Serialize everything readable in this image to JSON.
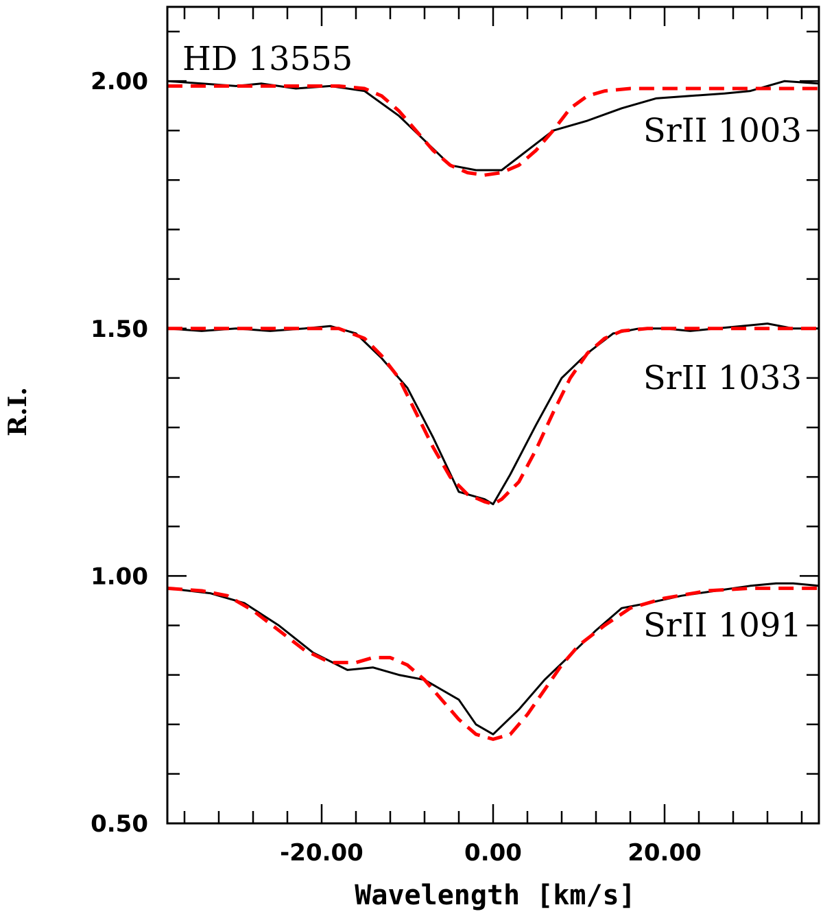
{
  "chart_data": {
    "type": "line",
    "title": "",
    "xlabel": "Wavelength [km/s]",
    "ylabel": "R.I.",
    "xlim": [
      -38,
      38
    ],
    "ylim": [
      0.5,
      2.15
    ],
    "x_ticks": [
      -20.0,
      0.0,
      20.0
    ],
    "x_tick_labels": [
      "-20.00",
      "0.00",
      "20.00"
    ],
    "y_ticks": [
      0.5,
      1.0,
      1.5,
      2.0
    ],
    "y_tick_labels": [
      "0.50",
      "1.00",
      "1.50",
      "2.00"
    ],
    "x_minor_step": 4,
    "y_minor_step": 0.1,
    "grid": false,
    "star_label": "HD 13555",
    "colors": {
      "observed": "#000000",
      "model": "#ff0000"
    },
    "series": [
      {
        "line_label": "SrII 1003",
        "label_anchor": [
          36,
          1.9
        ],
        "observed": {
          "x": [
            -38,
            -34,
            -30,
            -27,
            -23,
            -19,
            -15,
            -11,
            -8,
            -5,
            -2,
            1,
            4,
            7,
            11,
            15,
            19,
            23,
            27,
            30,
            34,
            38
          ],
          "y": [
            2.0,
            1.995,
            1.99,
            1.995,
            1.985,
            1.99,
            1.98,
            1.93,
            1.88,
            1.83,
            1.82,
            1.82,
            1.86,
            1.9,
            1.92,
            1.945,
            1.965,
            1.97,
            1.975,
            1.98,
            2.0,
            1.995
          ]
        },
        "model": {
          "x": [
            -38,
            -30,
            -22,
            -18,
            -15,
            -13,
            -11,
            -9,
            -7,
            -5,
            -3,
            -1,
            1,
            3,
            5,
            7,
            9,
            11,
            13,
            16,
            22,
            30,
            38
          ],
          "y": [
            1.99,
            1.99,
            1.99,
            1.99,
            1.985,
            1.97,
            1.94,
            1.9,
            1.86,
            1.83,
            1.815,
            1.81,
            1.815,
            1.83,
            1.86,
            1.9,
            1.945,
            1.97,
            1.98,
            1.985,
            1.985,
            1.985,
            1.985
          ]
        }
      },
      {
        "line_label": "SrII 1033",
        "label_anchor": [
          36,
          1.4
        ],
        "observed": {
          "x": [
            -38,
            -34,
            -30,
            -26,
            -22,
            -19,
            -16,
            -13,
            -10,
            -7,
            -4,
            -1,
            0,
            2,
            5,
            8,
            11,
            14,
            17,
            20,
            23,
            26,
            29,
            32,
            35,
            38
          ],
          "y": [
            1.5,
            1.495,
            1.5,
            1.495,
            1.5,
            1.505,
            1.49,
            1.44,
            1.38,
            1.28,
            1.17,
            1.155,
            1.145,
            1.205,
            1.305,
            1.4,
            1.45,
            1.49,
            1.5,
            1.5,
            1.495,
            1.5,
            1.505,
            1.51,
            1.5,
            1.5
          ]
        },
        "model": {
          "x": [
            -38,
            -30,
            -22,
            -18,
            -15,
            -13,
            -11,
            -9,
            -7,
            -5,
            -3,
            -1,
            0,
            1,
            3,
            5,
            7,
            9,
            11,
            13,
            15,
            18,
            22,
            30,
            38
          ],
          "y": [
            1.5,
            1.5,
            1.5,
            1.5,
            1.48,
            1.445,
            1.4,
            1.33,
            1.26,
            1.2,
            1.165,
            1.15,
            1.145,
            1.155,
            1.19,
            1.255,
            1.33,
            1.4,
            1.45,
            1.48,
            1.495,
            1.5,
            1.5,
            1.5,
            1.5
          ]
        }
      },
      {
        "line_label": "SrII 1091",
        "label_anchor": [
          36,
          0.9
        ],
        "observed": {
          "x": [
            -38,
            -33,
            -29,
            -25,
            -21,
            -17,
            -14,
            -11,
            -8,
            -4,
            -2,
            0,
            3,
            6,
            9,
            12,
            15,
            18,
            22,
            26,
            30,
            33,
            35,
            38
          ],
          "y": [
            0.975,
            0.965,
            0.945,
            0.9,
            0.845,
            0.81,
            0.815,
            0.8,
            0.79,
            0.75,
            0.7,
            0.68,
            0.73,
            0.79,
            0.84,
            0.89,
            0.935,
            0.945,
            0.96,
            0.97,
            0.98,
            0.985,
            0.985,
            0.98
          ]
        },
        "model": {
          "x": [
            -38,
            -34,
            -31,
            -28,
            -25,
            -22,
            -19,
            -16,
            -14,
            -12,
            -10,
            -8,
            -6,
            -4,
            -2,
            0,
            2,
            4,
            6,
            8,
            10,
            13,
            16,
            20,
            25,
            30,
            38
          ],
          "y": [
            0.975,
            0.97,
            0.96,
            0.93,
            0.89,
            0.85,
            0.825,
            0.825,
            0.835,
            0.835,
            0.82,
            0.79,
            0.75,
            0.71,
            0.68,
            0.67,
            0.68,
            0.72,
            0.77,
            0.82,
            0.86,
            0.9,
            0.935,
            0.955,
            0.97,
            0.975,
            0.975
          ]
        }
      }
    ]
  }
}
